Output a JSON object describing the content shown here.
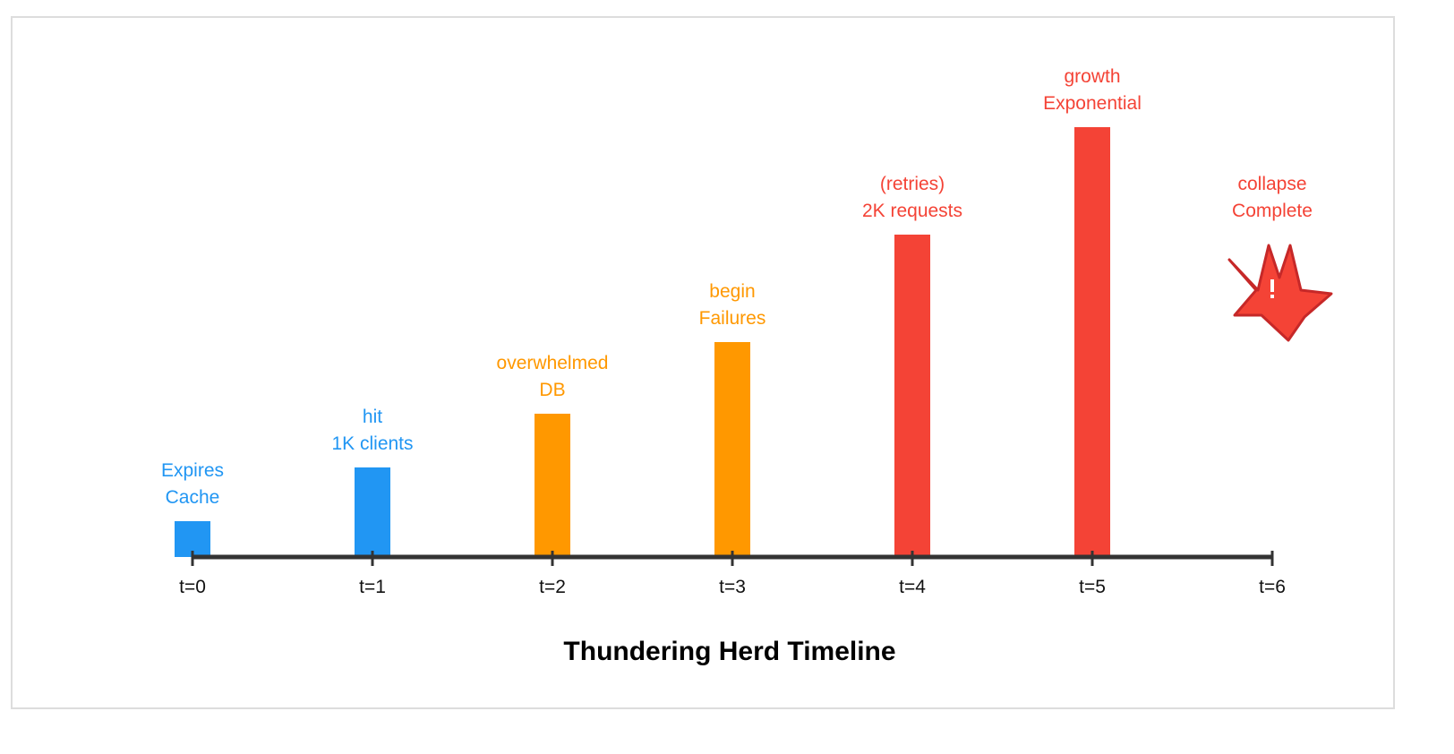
{
  "chart_data": {
    "type": "bar",
    "title": "Thundering Herd Timeline",
    "xlabel": "",
    "ylabel": "",
    "categories": [
      "t=0",
      "t=1",
      "t=2",
      "t=3",
      "t=4",
      "t=5",
      "t=6"
    ],
    "values": [
      1,
      2.5,
      4,
      6,
      9,
      12,
      null
    ],
    "ylim": [
      0,
      14
    ],
    "grid": false,
    "colors": [
      "#2196f3",
      "#2196f3",
      "#ff9800",
      "#ff9800",
      "#f44336",
      "#f44336",
      "#f44336"
    ],
    "annotations": [
      {
        "category": "t=0",
        "lines": [
          "Expires",
          "Cache"
        ]
      },
      {
        "category": "t=1",
        "lines": [
          "hit",
          "1K clients"
        ]
      },
      {
        "category": "t=2",
        "lines": [
          "overwhelmed",
          "DB"
        ]
      },
      {
        "category": "t=3",
        "lines": [
          "begin",
          "Failures"
        ]
      },
      {
        "category": "t=4",
        "lines": [
          "(retries)",
          "2K requests"
        ]
      },
      {
        "category": "t=5",
        "lines": [
          "growth",
          "Exponential"
        ]
      },
      {
        "category": "t=6",
        "lines": [
          "collapse",
          "Complete"
        ],
        "icon": "explosion-icon"
      }
    ],
    "annotation_color_final": "#f44336",
    "axis_color": "#333333"
  }
}
